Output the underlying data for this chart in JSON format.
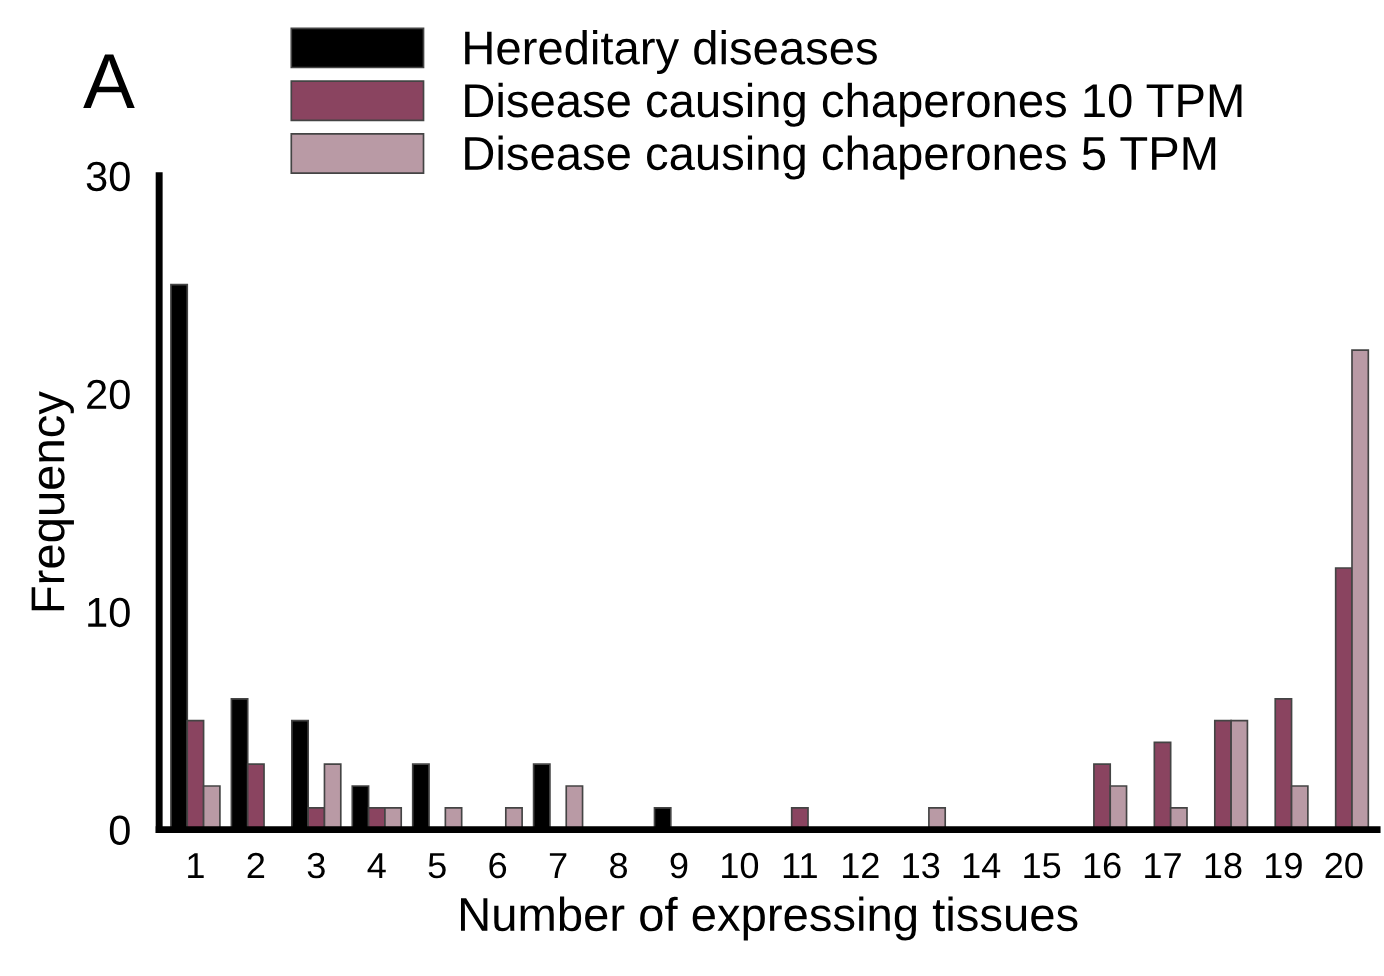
{
  "chart_data": {
    "type": "bar",
    "categories": [
      "1",
      "2",
      "3",
      "4",
      "5",
      "6",
      "7",
      "8",
      "9",
      "10",
      "11",
      "12",
      "13",
      "14",
      "15",
      "16",
      "17",
      "18",
      "19",
      "20"
    ],
    "series": [
      {
        "name": "Hereditary diseases",
        "color": "#000000",
        "values": [
          25,
          6,
          5,
          2,
          3,
          0,
          3,
          0,
          1,
          0,
          0,
          0,
          0,
          0,
          0,
          0,
          0,
          0,
          0,
          0
        ]
      },
      {
        "name": "Disease causing chaperones 10 TPM",
        "color": "#8a4460",
        "values": [
          5,
          3,
          1,
          1,
          0,
          0,
          0,
          0,
          0,
          0,
          1,
          0,
          0,
          0,
          0,
          3,
          4,
          5,
          6,
          12
        ]
      },
      {
        "name": "Disease causing chaperones 5 TPM",
        "color": "#b99aa5",
        "values": [
          2,
          0,
          3,
          1,
          1,
          1,
          2,
          0,
          0,
          0,
          0,
          0,
          1,
          0,
          0,
          2,
          1,
          5,
          2,
          22
        ]
      }
    ],
    "xlabel": "Number of expressing tissues",
    "ylabel": "Frequency",
    "ylim": [
      0,
      30
    ],
    "yticks": [
      0,
      10,
      20,
      30
    ],
    "annotations": [
      "A"
    ],
    "legend": "top",
    "grid": false
  }
}
